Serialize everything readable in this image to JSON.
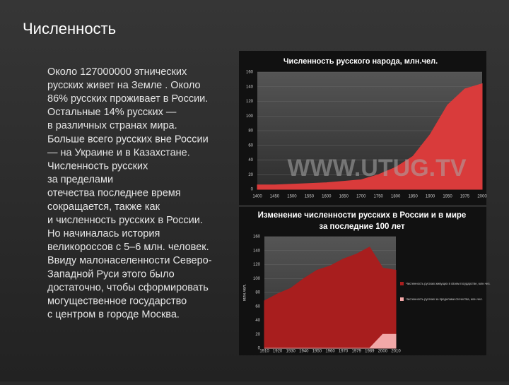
{
  "title": "Численность",
  "body": [
    "Около 127000000 этнических",
    "русских живет на Земле . Около",
    "86% русских проживает в России.",
    "Остальные 14% русских —",
    "в различных странах мира.",
    "Больше всего русских вне России",
    "— на Украине и в Казахстане.",
    "Численность русских",
    "за пределами",
    "отечества последнее время",
    "сокращается, также как",
    "и численность русских в России.",
    "Но начиналась история",
    "великороссов с 5–6 млн. человек.",
    "Ввиду малонаселенности Северо-",
    "Западной Руси этого было",
    "достаточно, чтобы сформировать",
    "могущественное государство",
    "с центром в городе Москва."
  ],
  "chart_data": [
    {
      "type": "area",
      "title": "Численность русского народа, млн.чел.",
      "watermark": "WWW.UTUG.TV",
      "categories": [
        "1400",
        "1450",
        "1500",
        "1550",
        "1600",
        "1650",
        "1700",
        "1750",
        "1800",
        "1850",
        "1900",
        "1950",
        "1975",
        "2000"
      ],
      "values": [
        6,
        6,
        7,
        8,
        9,
        11,
        13,
        20,
        30,
        45,
        75,
        115,
        137,
        144
      ],
      "color": "#d93b3b",
      "ylim": [
        0,
        160
      ],
      "yticks": [
        0,
        20,
        40,
        60,
        80,
        100,
        120,
        140,
        160
      ],
      "grid": true
    },
    {
      "type": "area",
      "title": "Изменение численности русских в России и в мире",
      "subtitle": "за последние 100 лет",
      "y_label": "млн.чел.",
      "categories": [
        "1910",
        "1920",
        "1930",
        "1940",
        "1950",
        "1960",
        "1970",
        "1979",
        "1989",
        "2000",
        "2010"
      ],
      "series": [
        {
          "name": "Численность русских живущих в своем государстве, млн.чел.",
          "color": "#a81e1e",
          "values": [
            68,
            78,
            86,
            100,
            112,
            118,
            128,
            135,
            145,
            115,
            112
          ]
        },
        {
          "name": "Численность русских за пределами отечества, млн.чел.",
          "color": "#f2a8a8",
          "values": [
            0,
            0,
            0,
            0,
            0,
            0,
            0,
            0,
            0,
            20,
            20
          ]
        }
      ],
      "ylim": [
        0,
        160
      ],
      "yticks": [
        0,
        20,
        40,
        60,
        80,
        100,
        120,
        140,
        160
      ],
      "grid": true,
      "legend": "right"
    }
  ]
}
